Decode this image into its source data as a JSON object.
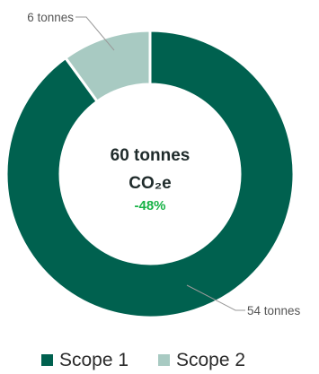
{
  "chart_data": {
    "type": "pie",
    "variant": "donut",
    "series": [
      {
        "name": "Scope 1",
        "value": 54,
        "label": "54 tonnes",
        "color": "#00614f"
      },
      {
        "name": "Scope 2",
        "value": 6,
        "label": "6 tonnes",
        "color": "#a8cac2"
      }
    ],
    "center": {
      "total_label": "60 tonnes",
      "unit_label": "CO₂e",
      "change_label": "-48%",
      "change_color": "#16b246"
    },
    "legend": {
      "position": "bottom",
      "items": [
        "Scope 1",
        "Scope 2"
      ]
    }
  }
}
